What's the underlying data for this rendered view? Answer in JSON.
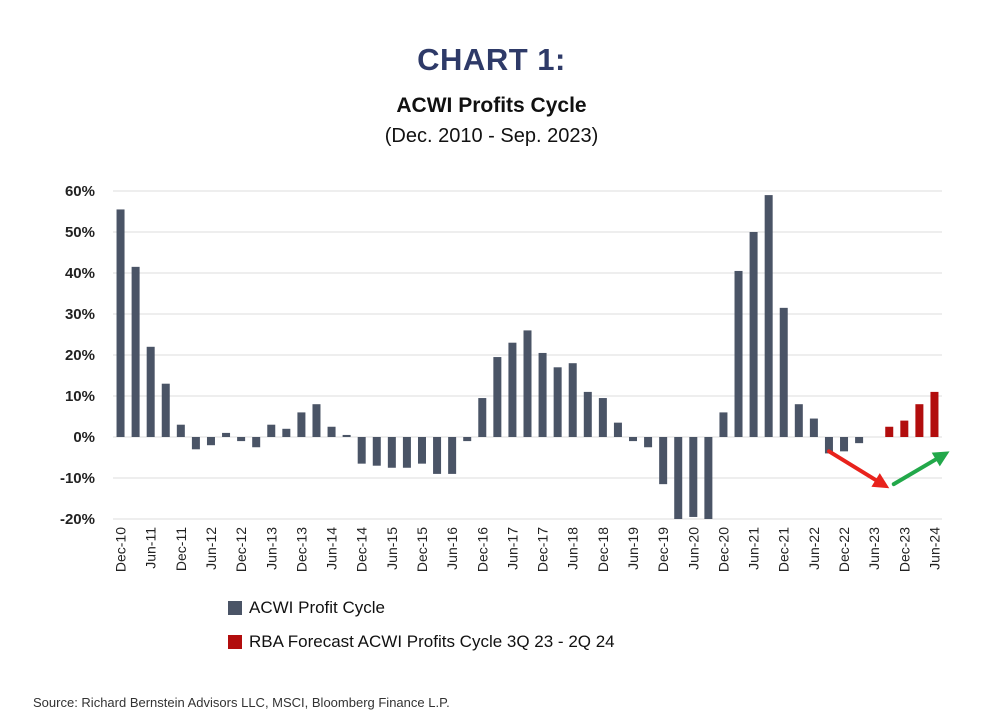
{
  "heading": "CHART 1:",
  "source": "Source: Richard Bernstein Advisors LLC, MSCI, Bloomberg Finance L.P.",
  "chart_data": {
    "type": "bar",
    "title": "ACWI Profits Cycle",
    "subtitle": "(Dec. 2010 - Sep. 2023)",
    "xlabel": "",
    "ylabel": "",
    "ylim": [
      -20,
      60
    ],
    "yticks": [
      "-20%",
      "-10%",
      "0%",
      "10%",
      "20%",
      "30%",
      "40%",
      "50%",
      "60%"
    ],
    "ytick_values": [
      -20,
      -10,
      0,
      10,
      20,
      30,
      40,
      50,
      60
    ],
    "grid": true,
    "legend_position": "bottom",
    "categories": [
      "Dec-10",
      "Mar-11",
      "Jun-11",
      "Sep-11",
      "Dec-11",
      "Mar-12",
      "Jun-12",
      "Sep-12",
      "Dec-12",
      "Mar-13",
      "Jun-13",
      "Sep-13",
      "Dec-13",
      "Mar-14",
      "Jun-14",
      "Sep-14",
      "Dec-14",
      "Mar-15",
      "Jun-15",
      "Sep-15",
      "Dec-15",
      "Mar-16",
      "Jun-16",
      "Sep-16",
      "Dec-16",
      "Mar-17",
      "Jun-17",
      "Sep-17",
      "Dec-17",
      "Mar-18",
      "Jun-18",
      "Sep-18",
      "Dec-18",
      "Mar-19",
      "Jun-19",
      "Sep-19",
      "Dec-19",
      "Mar-20",
      "Jun-20",
      "Sep-20",
      "Dec-20",
      "Mar-21",
      "Jun-21",
      "Sep-21",
      "Dec-21",
      "Mar-22",
      "Jun-22",
      "Sep-22",
      "Dec-22",
      "Mar-23",
      "Jun-23",
      "Sep-23",
      "Dec-23",
      "Mar-24",
      "Jun-24"
    ],
    "tick_labels": [
      "Dec-10",
      "Jun-11",
      "Dec-11",
      "Jun-12",
      "Dec-12",
      "Jun-13",
      "Dec-13",
      "Jun-14",
      "Dec-14",
      "Jun-15",
      "Dec-15",
      "Jun-16",
      "Dec-16",
      "Jun-17",
      "Dec-17",
      "Jun-18",
      "Dec-18",
      "Jun-19",
      "Dec-19",
      "Jun-20",
      "Dec-20",
      "Jun-21",
      "Dec-21",
      "Jun-22",
      "Dec-22",
      "Jun-23",
      "Dec-23",
      "Jun-24"
    ],
    "series": [
      {
        "name": "ACWI Profit Cycle",
        "color": "#4a5466",
        "values": [
          55.5,
          41.5,
          22,
          13,
          3,
          -3,
          -2,
          1,
          -1,
          -2.5,
          3,
          2,
          6,
          8,
          2.5,
          0.5,
          -6.5,
          -7,
          -7.5,
          -7.5,
          -6.5,
          -9,
          -9,
          -1,
          9.5,
          19.5,
          23,
          26,
          20.5,
          17,
          18,
          11,
          9.5,
          3.5,
          -1,
          -2.5,
          -11.5,
          -20,
          -19.5,
          -20,
          6,
          40.5,
          50,
          59,
          31.5,
          8,
          4.5,
          -4,
          -3.5,
          -1.5,
          null,
          null,
          null,
          null,
          null
        ]
      },
      {
        "name": "RBA Forecast ACWI Profits Cycle 3Q 23 - 2Q 24",
        "color": "#b20d0d",
        "values": [
          null,
          null,
          null,
          null,
          null,
          null,
          null,
          null,
          null,
          null,
          null,
          null,
          null,
          null,
          null,
          null,
          null,
          null,
          null,
          null,
          null,
          null,
          null,
          null,
          null,
          null,
          null,
          null,
          null,
          null,
          null,
          null,
          null,
          null,
          null,
          null,
          null,
          null,
          null,
          null,
          null,
          null,
          null,
          null,
          null,
          null,
          null,
          null,
          null,
          null,
          null,
          2.5,
          4,
          8,
          11
        ]
      }
    ],
    "arrows": [
      {
        "name": "down-arrow",
        "color": "#e8221c",
        "from": [
          47.5,
          -3.5
        ],
        "to": [
          51.5,
          -12.5
        ]
      },
      {
        "name": "up-arrow",
        "color": "#22a84a",
        "from": [
          51.8,
          -11.5
        ],
        "to": [
          55.5,
          -3.5
        ]
      }
    ]
  }
}
